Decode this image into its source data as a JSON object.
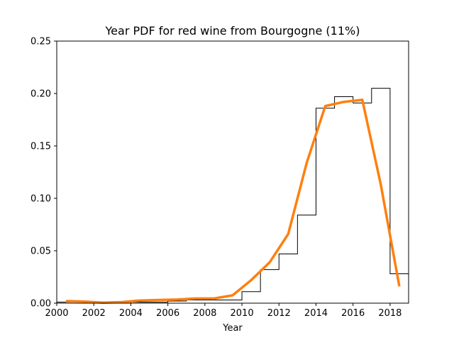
{
  "chart_data": {
    "type": "line",
    "title": "Year PDF for red wine from Bourgogne (11%)",
    "xlabel": "Year",
    "ylabel": "",
    "xlim": [
      2000,
      2019
    ],
    "ylim": [
      0,
      0.25
    ],
    "x_ticks": [
      2000,
      2002,
      2004,
      2006,
      2008,
      2010,
      2012,
      2014,
      2016,
      2018
    ],
    "x_tick_labels": [
      "2000",
      "2002",
      "2004",
      "2006",
      "2008",
      "2010",
      "2012",
      "2014",
      "2016",
      "2018"
    ],
    "y_ticks": [
      0.0,
      0.05,
      0.1,
      0.15,
      0.2,
      0.25
    ],
    "y_tick_labels": [
      "0.00",
      "0.05",
      "0.10",
      "0.15",
      "0.20",
      "0.25"
    ],
    "grid": false,
    "series": [
      {
        "kind": "histogram-step",
        "color": "#000000",
        "bin_edges": [
          2000,
          2001,
          2002,
          2003,
          2004,
          2005,
          2006,
          2007,
          2008,
          2009,
          2010,
          2011,
          2012,
          2013,
          2014,
          2015,
          2016,
          2017,
          2018,
          2019
        ],
        "values": [
          0.001,
          0.001,
          0.0,
          0.0,
          0.001,
          0.001,
          0.002,
          0.003,
          0.003,
          0.003,
          0.011,
          0.032,
          0.047,
          0.084,
          0.186,
          0.197,
          0.191,
          0.205,
          0.028
        ]
      },
      {
        "kind": "line",
        "color": "#ff7f0e",
        "x": [
          2000.5,
          2001.5,
          2002.5,
          2003.5,
          2004.5,
          2005.5,
          2006.5,
          2007.5,
          2008.5,
          2009.5,
          2010.5,
          2011.5,
          2012.5,
          2013.5,
          2014.5,
          2015.5,
          2016.5,
          2017.5,
          2018.5
        ],
        "y": [
          0.002,
          0.0015,
          0.0005,
          0.001,
          0.0025,
          0.003,
          0.0035,
          0.0045,
          0.0045,
          0.0075,
          0.022,
          0.039,
          0.066,
          0.134,
          0.188,
          0.192,
          0.194,
          0.113,
          0.016
        ]
      }
    ]
  }
}
